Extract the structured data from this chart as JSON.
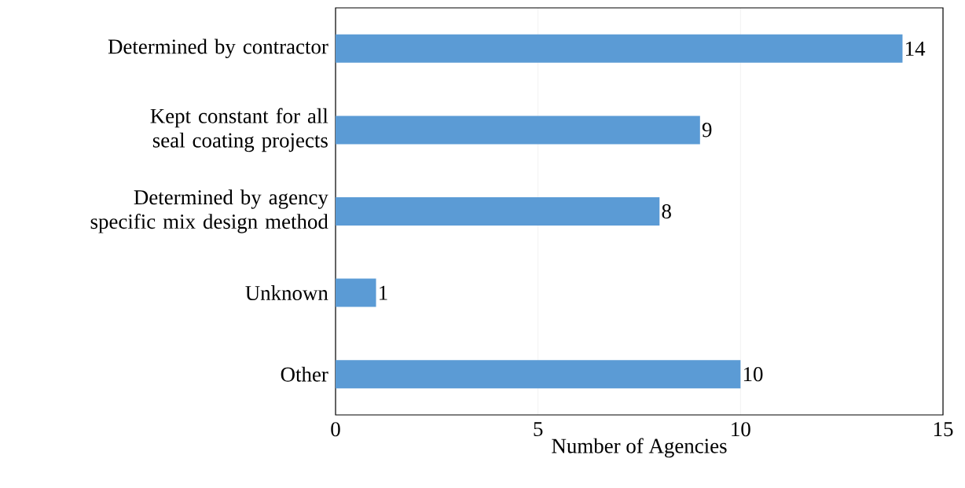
{
  "chart_data": {
    "type": "bar",
    "orientation": "horizontal",
    "xlabel": "Number of Agencies",
    "categories": [
      "Determined by contractor",
      "Kept constant for all seal coating projects",
      "Determined by agency specific mix design method",
      "Unknown",
      "Other"
    ],
    "values": [
      14,
      9,
      8,
      1,
      10
    ],
    "color": "#5b9bd5",
    "xlim": [
      0,
      15
    ],
    "xticks": [
      0,
      5,
      10,
      15
    ],
    "grid": "x",
    "data_labels": true
  }
}
